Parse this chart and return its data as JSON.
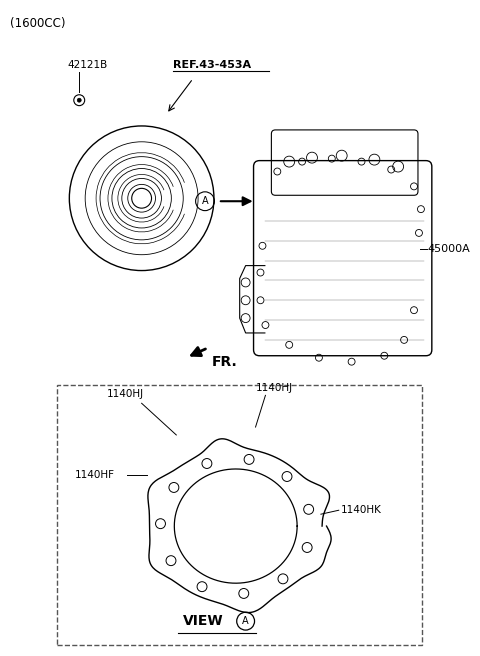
{
  "bg_color": "#ffffff",
  "fig_width": 4.8,
  "fig_height": 6.56,
  "dpi": 100,
  "labels": {
    "top_left": "(1600CC)",
    "part1": "42121B",
    "part2": "REF.43-453A",
    "part3": "45000A",
    "fr_label": "FR.",
    "view_label": "VIEW",
    "view_circle_label": "A",
    "label_1140HJ_left": "1140HJ",
    "label_1140HJ_right": "1140HJ",
    "label_1140HF": "1140HF",
    "label_1140HK": "1140HK",
    "circle_A": "A"
  },
  "colors": {
    "line": "#000000",
    "text": "#000000",
    "dashed_box": "#555555",
    "bg": "#ffffff"
  }
}
